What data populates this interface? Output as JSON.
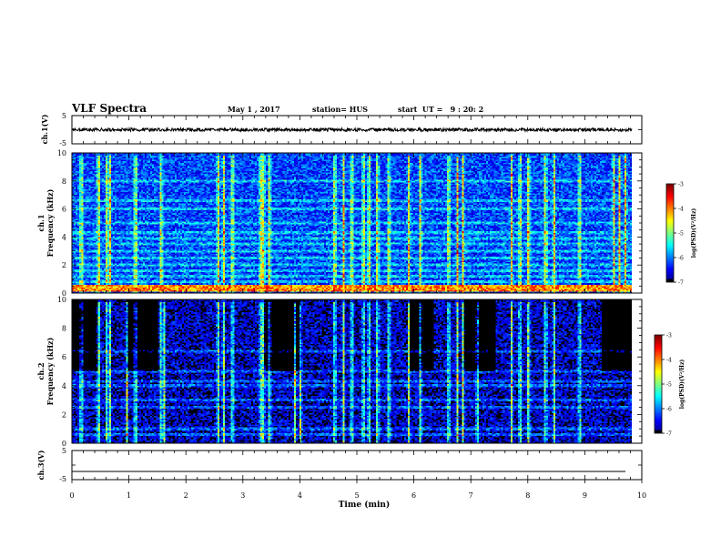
{
  "chart_data": {
    "type": "heatmap",
    "title": "VLF Spectra",
    "date": "May 1 , 2017",
    "station": "station= HUS",
    "start_ut": "start  UT =   9 : 20: 2",
    "x_axis": {
      "label": "Time (min)",
      "range": [
        0,
        10
      ],
      "ticks": [
        "0",
        "1",
        "2",
        "3",
        "4",
        "5",
        "6",
        "7",
        "8",
        "9",
        "10"
      ],
      "data_end": 9.83
    },
    "panels": [
      {
        "kind": "waveform",
        "ylabel": "ch.1(V)",
        "yrange": [
          -5,
          5
        ],
        "ticks": [
          "5",
          "-5"
        ],
        "level": 0,
        "noise_amplitude": 0.6
      },
      {
        "kind": "spectrogram",
        "channel_label": "ch.1",
        "ylabel": "Frequency (kHz)",
        "yrange": [
          0,
          10
        ],
        "ticks": [
          "0",
          "2",
          "4",
          "6",
          "8",
          "10"
        ],
        "colorbar": {
          "label": "log(PSD)(V²/Hz)",
          "range": [
            -7,
            -3
          ],
          "ticks": [
            "-3",
            "-4",
            "-5",
            "-6",
            "-7"
          ]
        },
        "background_level": -6.2,
        "horizontal_bands_khz": [
          0.3,
          0.5,
          0.8,
          1.2,
          1.6,
          2.0,
          2.5,
          3.0,
          3.5,
          3.9,
          4.3,
          5.0,
          6.0,
          6.6,
          8.0
        ],
        "bright_bands_khz": [
          0.25,
          0.5
        ],
        "burst_times_min": [
          0.15,
          0.45,
          0.6,
          0.65,
          1.1,
          1.55,
          2.55,
          2.65,
          2.8,
          3.3,
          3.35,
          3.45,
          4.6,
          4.75,
          4.9,
          5.1,
          5.2,
          5.35,
          5.55,
          5.9,
          6.1,
          6.6,
          6.75,
          6.85,
          7.7,
          7.85,
          8.0,
          8.3,
          8.45,
          8.9,
          9.5,
          9.6,
          9.7
        ]
      },
      {
        "kind": "spectrogram",
        "channel_label": "ch.2",
        "ylabel": "Frequency (kHz)",
        "yrange": [
          0,
          10
        ],
        "ticks": [
          "0",
          "2",
          "4",
          "6",
          "8",
          "10"
        ],
        "colorbar": {
          "label": "log(PSD)(V²/Hz)",
          "range": [
            -7,
            -3
          ],
          "ticks": [
            "-3",
            "-4",
            "-5",
            "-6",
            "-7"
          ]
        },
        "background_level": -6.7,
        "horizontal_bands_khz": [
          0.6,
          1.0,
          2.5,
          3.0,
          4.0,
          4.3,
          5.0,
          6.4
        ],
        "bright_bands_khz": [],
        "burst_times_min": [
          0.15,
          0.45,
          0.6,
          0.65,
          0.95,
          1.1,
          1.55,
          1.6,
          2.55,
          2.65,
          2.8,
          3.3,
          3.35,
          3.45,
          3.9,
          4.0,
          4.6,
          4.75,
          4.9,
          5.1,
          5.2,
          5.35,
          5.55,
          5.9,
          6.1,
          6.6,
          6.75,
          6.85,
          7.1,
          7.7,
          7.85,
          8.0,
          8.3,
          8.45,
          8.9
        ]
      },
      {
        "kind": "waveform",
        "ylabel": "ch.3(V)",
        "yrange": [
          -5,
          5
        ],
        "ticks": [
          "5",
          "-5"
        ],
        "level": -2.2,
        "noise_amplitude": 0
      }
    ]
  }
}
